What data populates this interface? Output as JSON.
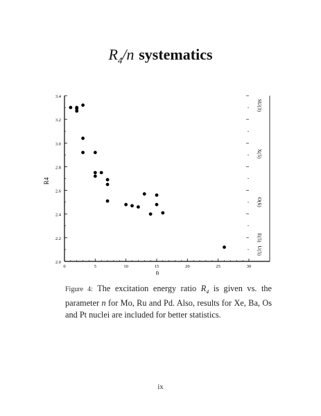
{
  "title": {
    "symbol_R": "R",
    "symbol_sub": "4",
    "slash_n": "/n",
    "word": "systematics"
  },
  "chart_data": {
    "type": "scatter",
    "xlabel": "n",
    "ylabel": "R4",
    "xlim": [
      0,
      30
    ],
    "ylim": [
      2.0,
      3.4
    ],
    "xticks": [
      0,
      5,
      10,
      15,
      20,
      25,
      30
    ],
    "yticks": [
      "2.0",
      "2.2",
      "2.4",
      "2.6",
      "2.8",
      "3.0",
      "3.2",
      "3.4"
    ],
    "right_axis_labels": [
      {
        "label": "SU(3)",
        "y": 3.33
      },
      {
        "label": "X(5)",
        "y": 2.91
      },
      {
        "label": "O(6)",
        "y": 2.5
      },
      {
        "label": "E(5)",
        "y": 2.2
      },
      {
        "label": "U(5)",
        "y": 2.0
      }
    ],
    "points": [
      {
        "x": 1,
        "y": 3.3
      },
      {
        "x": 2,
        "y": 3.3
      },
      {
        "x": 2,
        "y": 3.29
      },
      {
        "x": 2,
        "y": 3.27
      },
      {
        "x": 3,
        "y": 3.32
      },
      {
        "x": 3,
        "y": 3.04
      },
      {
        "x": 3,
        "y": 2.92
      },
      {
        "x": 5,
        "y": 2.92
      },
      {
        "x": 5,
        "y": 2.75
      },
      {
        "x": 5,
        "y": 2.72
      },
      {
        "x": 6,
        "y": 2.75
      },
      {
        "x": 7,
        "y": 2.69
      },
      {
        "x": 7,
        "y": 2.65
      },
      {
        "x": 7,
        "y": 2.51
      },
      {
        "x": 10,
        "y": 2.48
      },
      {
        "x": 11,
        "y": 2.47
      },
      {
        "x": 12,
        "y": 2.46
      },
      {
        "x": 13,
        "y": 2.57
      },
      {
        "x": 14,
        "y": 2.4
      },
      {
        "x": 15,
        "y": 2.56
      },
      {
        "x": 15,
        "y": 2.48
      },
      {
        "x": 16,
        "y": 2.41
      },
      {
        "x": 26,
        "y": 2.12
      }
    ],
    "grid": false
  },
  "caption": {
    "label": "Figure 4:",
    "text_1": "The excitation energy ratio",
    "symbol": "R",
    "symbol_sub": "4",
    "text_2": "is given vs. the parameter",
    "param": "n",
    "text_3": "for Mo, Ru and Pd. Also, results for Xe, Ba, Os and Pt nuclei are included for better statistics."
  },
  "page_number": "ix"
}
